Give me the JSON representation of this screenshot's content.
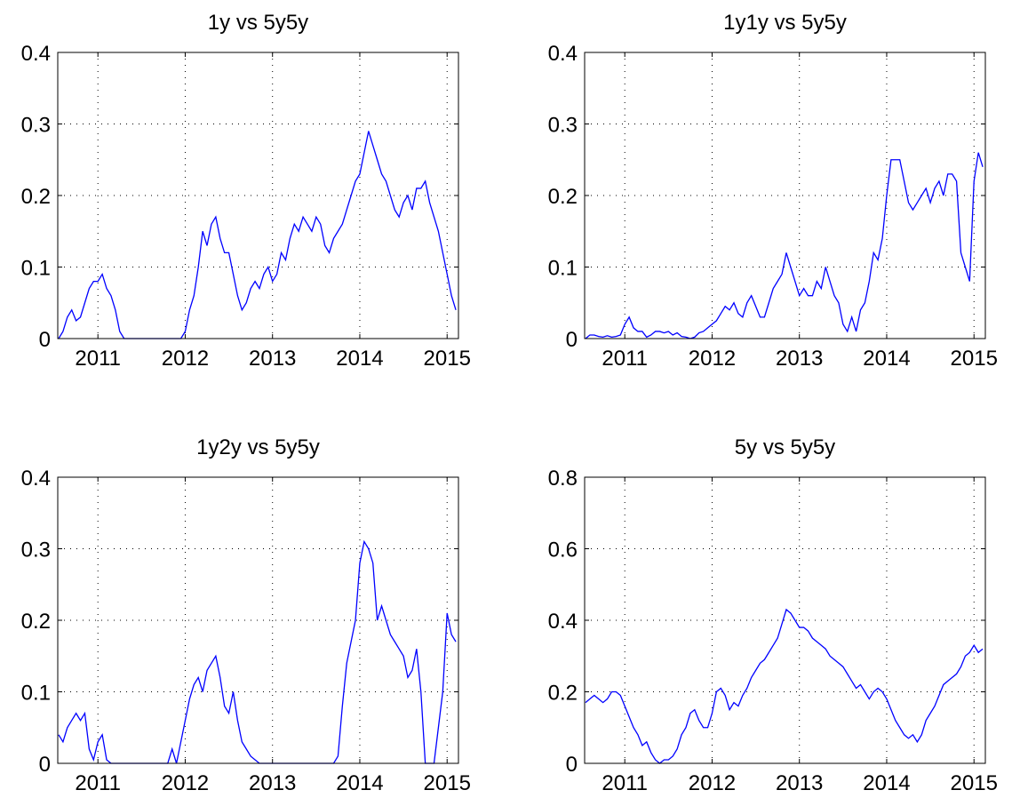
{
  "chart_data": [
    {
      "type": "line",
      "title": "1y vs 5y5y",
      "color": "#0000ff",
      "grid": true,
      "xlim": [
        2010.54,
        2015.13
      ],
      "ylim": [
        0,
        0.4
      ],
      "xticks": [
        2011,
        2012,
        2013,
        2014,
        2015
      ],
      "yticks": [
        0,
        0.1,
        0.2,
        0.3,
        0.4
      ],
      "x": [
        2010.55,
        2010.6,
        2010.65,
        2010.7,
        2010.75,
        2010.8,
        2010.85,
        2010.9,
        2010.95,
        2011.0,
        2011.05,
        2011.1,
        2011.15,
        2011.2,
        2011.25,
        2011.3,
        2011.35,
        2011.4,
        2011.45,
        2011.5,
        2011.55,
        2011.6,
        2011.65,
        2011.7,
        2011.75,
        2011.8,
        2011.85,
        2011.9,
        2011.95,
        2012.0,
        2012.05,
        2012.1,
        2012.15,
        2012.2,
        2012.25,
        2012.3,
        2012.35,
        2012.4,
        2012.45,
        2012.5,
        2012.55,
        2012.6,
        2012.65,
        2012.7,
        2012.75,
        2012.8,
        2012.85,
        2012.9,
        2012.95,
        2013.0,
        2013.05,
        2013.1,
        2013.15,
        2013.2,
        2013.25,
        2013.3,
        2013.35,
        2013.4,
        2013.45,
        2013.5,
        2013.55,
        2013.6,
        2013.65,
        2013.7,
        2013.75,
        2013.8,
        2013.85,
        2013.9,
        2013.95,
        2014.0,
        2014.05,
        2014.1,
        2014.15,
        2014.2,
        2014.25,
        2014.3,
        2014.35,
        2014.4,
        2014.45,
        2014.5,
        2014.55,
        2014.6,
        2014.65,
        2014.7,
        2014.75,
        2014.8,
        2014.85,
        2014.9,
        2014.95,
        2015.0,
        2015.05,
        2015.1
      ],
      "values": [
        0,
        0.01,
        0.03,
        0.04,
        0.025,
        0.03,
        0.05,
        0.07,
        0.08,
        0.08,
        0.09,
        0.07,
        0.06,
        0.04,
        0.01,
        0,
        0,
        0,
        0,
        0,
        0,
        0,
        0,
        0,
        0,
        0,
        0,
        0,
        0,
        0.01,
        0.04,
        0.06,
        0.1,
        0.15,
        0.13,
        0.16,
        0.17,
        0.14,
        0.12,
        0.12,
        0.09,
        0.06,
        0.04,
        0.05,
        0.07,
        0.08,
        0.07,
        0.09,
        0.1,
        0.08,
        0.09,
        0.12,
        0.11,
        0.14,
        0.16,
        0.15,
        0.17,
        0.16,
        0.15,
        0.17,
        0.16,
        0.13,
        0.12,
        0.14,
        0.15,
        0.16,
        0.18,
        0.2,
        0.22,
        0.23,
        0.26,
        0.29,
        0.27,
        0.25,
        0.23,
        0.22,
        0.2,
        0.18,
        0.17,
        0.19,
        0.2,
        0.18,
        0.21,
        0.21,
        0.22,
        0.19,
        0.17,
        0.15,
        0.12,
        0.09,
        0.06,
        0.04
      ]
    },
    {
      "type": "line",
      "title": "1y1y vs 5y5y",
      "color": "#0000ff",
      "grid": true,
      "xlim": [
        2010.54,
        2015.13
      ],
      "ylim": [
        0,
        0.4
      ],
      "xticks": [
        2011,
        2012,
        2013,
        2014,
        2015
      ],
      "yticks": [
        0,
        0.1,
        0.2,
        0.3,
        0.4
      ],
      "x": [
        2010.55,
        2010.6,
        2010.65,
        2010.7,
        2010.75,
        2010.8,
        2010.85,
        2010.9,
        2010.95,
        2011.0,
        2011.05,
        2011.1,
        2011.15,
        2011.2,
        2011.25,
        2011.3,
        2011.35,
        2011.4,
        2011.45,
        2011.5,
        2011.55,
        2011.6,
        2011.65,
        2011.7,
        2011.75,
        2011.8,
        2011.85,
        2011.9,
        2011.95,
        2012.0,
        2012.05,
        2012.1,
        2012.15,
        2012.2,
        2012.25,
        2012.3,
        2012.35,
        2012.4,
        2012.45,
        2012.5,
        2012.55,
        2012.6,
        2012.65,
        2012.7,
        2012.75,
        2012.8,
        2012.85,
        2012.9,
        2012.95,
        2013.0,
        2013.05,
        2013.1,
        2013.15,
        2013.2,
        2013.25,
        2013.3,
        2013.35,
        2013.4,
        2013.45,
        2013.5,
        2013.55,
        2013.6,
        2013.65,
        2013.7,
        2013.75,
        2013.8,
        2013.85,
        2013.9,
        2013.95,
        2014.0,
        2014.05,
        2014.1,
        2014.15,
        2014.2,
        2014.25,
        2014.3,
        2014.35,
        2014.4,
        2014.45,
        2014.5,
        2014.55,
        2014.6,
        2014.65,
        2014.7,
        2014.75,
        2014.8,
        2014.85,
        2014.9,
        2014.95,
        2015.0,
        2015.05,
        2015.1
      ],
      "values": [
        0,
        0.005,
        0.005,
        0.003,
        0.002,
        0.004,
        0.002,
        0.003,
        0.005,
        0.02,
        0.03,
        0.015,
        0.01,
        0.01,
        0.002,
        0.005,
        0.01,
        0.01,
        0.008,
        0.01,
        0.005,
        0.008,
        0.003,
        0.002,
        0,
        0.002,
        0.008,
        0.01,
        0.015,
        0.02,
        0.025,
        0.035,
        0.045,
        0.04,
        0.05,
        0.035,
        0.03,
        0.05,
        0.06,
        0.045,
        0.03,
        0.03,
        0.05,
        0.07,
        0.08,
        0.09,
        0.12,
        0.1,
        0.08,
        0.06,
        0.07,
        0.06,
        0.06,
        0.08,
        0.07,
        0.1,
        0.08,
        0.06,
        0.05,
        0.02,
        0.01,
        0.03,
        0.01,
        0.04,
        0.05,
        0.08,
        0.12,
        0.11,
        0.14,
        0.2,
        0.25,
        0.25,
        0.25,
        0.22,
        0.19,
        0.18,
        0.19,
        0.2,
        0.21,
        0.19,
        0.21,
        0.22,
        0.2,
        0.23,
        0.23,
        0.22,
        0.12,
        0.1,
        0.08,
        0.22,
        0.26,
        0.24
      ]
    },
    {
      "type": "line",
      "title": "1y2y vs 5y5y",
      "color": "#0000ff",
      "grid": true,
      "xlim": [
        2010.54,
        2015.13
      ],
      "ylim": [
        0,
        0.4
      ],
      "xticks": [
        2011,
        2012,
        2013,
        2014,
        2015
      ],
      "yticks": [
        0,
        0.1,
        0.2,
        0.3,
        0.4
      ],
      "x": [
        2010.55,
        2010.6,
        2010.65,
        2010.7,
        2010.75,
        2010.8,
        2010.85,
        2010.9,
        2010.95,
        2011.0,
        2011.05,
        2011.1,
        2011.15,
        2011.2,
        2011.25,
        2011.3,
        2011.35,
        2011.4,
        2011.45,
        2011.5,
        2011.55,
        2011.6,
        2011.65,
        2011.7,
        2011.75,
        2011.8,
        2011.85,
        2011.9,
        2011.95,
        2012.0,
        2012.05,
        2012.1,
        2012.15,
        2012.2,
        2012.25,
        2012.3,
        2012.35,
        2012.4,
        2012.45,
        2012.5,
        2012.55,
        2012.6,
        2012.65,
        2012.7,
        2012.75,
        2012.8,
        2012.85,
        2012.9,
        2012.95,
        2013.0,
        2013.05,
        2013.1,
        2013.15,
        2013.2,
        2013.25,
        2013.3,
        2013.35,
        2013.4,
        2013.45,
        2013.5,
        2013.55,
        2013.6,
        2013.65,
        2013.7,
        2013.75,
        2013.8,
        2013.85,
        2013.9,
        2013.95,
        2014.0,
        2014.05,
        2014.1,
        2014.15,
        2014.2,
        2014.25,
        2014.3,
        2014.35,
        2014.4,
        2014.45,
        2014.5,
        2014.55,
        2014.6,
        2014.65,
        2014.7,
        2014.75,
        2014.8,
        2014.85,
        2014.9,
        2014.95,
        2015.0,
        2015.05,
        2015.1
      ],
      "values": [
        0.04,
        0.03,
        0.05,
        0.06,
        0.07,
        0.06,
        0.07,
        0.02,
        0.005,
        0.03,
        0.04,
        0.005,
        0,
        0,
        0,
        0,
        0,
        0,
        0,
        0,
        0,
        0,
        0,
        0,
        0,
        0,
        0.02,
        0,
        0.03,
        0.06,
        0.09,
        0.11,
        0.12,
        0.1,
        0.13,
        0.14,
        0.15,
        0.12,
        0.08,
        0.07,
        0.1,
        0.06,
        0.03,
        0.02,
        0.01,
        0.005,
        0,
        0,
        0,
        0,
        0,
        0,
        0,
        0,
        0,
        0,
        0,
        0,
        0,
        0,
        0,
        0,
        0,
        0,
        0.01,
        0.08,
        0.14,
        0.17,
        0.2,
        0.28,
        0.31,
        0.3,
        0.28,
        0.2,
        0.22,
        0.2,
        0.18,
        0.17,
        0.16,
        0.15,
        0.12,
        0.13,
        0.16,
        0.1,
        0,
        0,
        0,
        0.05,
        0.1,
        0.21,
        0.18,
        0.17
      ]
    },
    {
      "type": "line",
      "title": "5y vs 5y5y",
      "color": "#0000ff",
      "grid": true,
      "xlim": [
        2010.54,
        2015.13
      ],
      "ylim": [
        0,
        0.8
      ],
      "xticks": [
        2011,
        2012,
        2013,
        2014,
        2015
      ],
      "yticks": [
        0,
        0.2,
        0.4,
        0.6,
        0.8
      ],
      "x": [
        2010.55,
        2010.6,
        2010.65,
        2010.7,
        2010.75,
        2010.8,
        2010.85,
        2010.9,
        2010.95,
        2011.0,
        2011.05,
        2011.1,
        2011.15,
        2011.2,
        2011.25,
        2011.3,
        2011.35,
        2011.4,
        2011.45,
        2011.5,
        2011.55,
        2011.6,
        2011.65,
        2011.7,
        2011.75,
        2011.8,
        2011.85,
        2011.9,
        2011.95,
        2012.0,
        2012.05,
        2012.1,
        2012.15,
        2012.2,
        2012.25,
        2012.3,
        2012.35,
        2012.4,
        2012.45,
        2012.5,
        2012.55,
        2012.6,
        2012.65,
        2012.7,
        2012.75,
        2012.8,
        2012.85,
        2012.9,
        2012.95,
        2013.0,
        2013.05,
        2013.1,
        2013.15,
        2013.2,
        2013.25,
        2013.3,
        2013.35,
        2013.4,
        2013.45,
        2013.5,
        2013.55,
        2013.6,
        2013.65,
        2013.7,
        2013.75,
        2013.8,
        2013.85,
        2013.9,
        2013.95,
        2014.0,
        2014.05,
        2014.1,
        2014.15,
        2014.2,
        2014.25,
        2014.3,
        2014.35,
        2014.4,
        2014.45,
        2014.5,
        2014.55,
        2014.6,
        2014.65,
        2014.7,
        2014.75,
        2014.8,
        2014.85,
        2014.9,
        2014.95,
        2015.0,
        2015.05,
        2015.1
      ],
      "values": [
        0.17,
        0.18,
        0.19,
        0.18,
        0.17,
        0.18,
        0.2,
        0.2,
        0.19,
        0.16,
        0.13,
        0.1,
        0.08,
        0.05,
        0.06,
        0.03,
        0.01,
        0,
        0.01,
        0.01,
        0.02,
        0.04,
        0.08,
        0.1,
        0.14,
        0.15,
        0.12,
        0.1,
        0.1,
        0.14,
        0.2,
        0.21,
        0.19,
        0.15,
        0.17,
        0.16,
        0.19,
        0.21,
        0.24,
        0.26,
        0.28,
        0.29,
        0.31,
        0.33,
        0.35,
        0.39,
        0.43,
        0.42,
        0.4,
        0.38,
        0.38,
        0.37,
        0.35,
        0.34,
        0.33,
        0.32,
        0.3,
        0.29,
        0.28,
        0.27,
        0.25,
        0.23,
        0.21,
        0.22,
        0.2,
        0.18,
        0.2,
        0.21,
        0.2,
        0.18,
        0.15,
        0.12,
        0.1,
        0.08,
        0.07,
        0.08,
        0.06,
        0.08,
        0.12,
        0.14,
        0.16,
        0.19,
        0.22,
        0.23,
        0.24,
        0.25,
        0.27,
        0.3,
        0.31,
        0.33,
        0.31,
        0.32
      ]
    }
  ]
}
